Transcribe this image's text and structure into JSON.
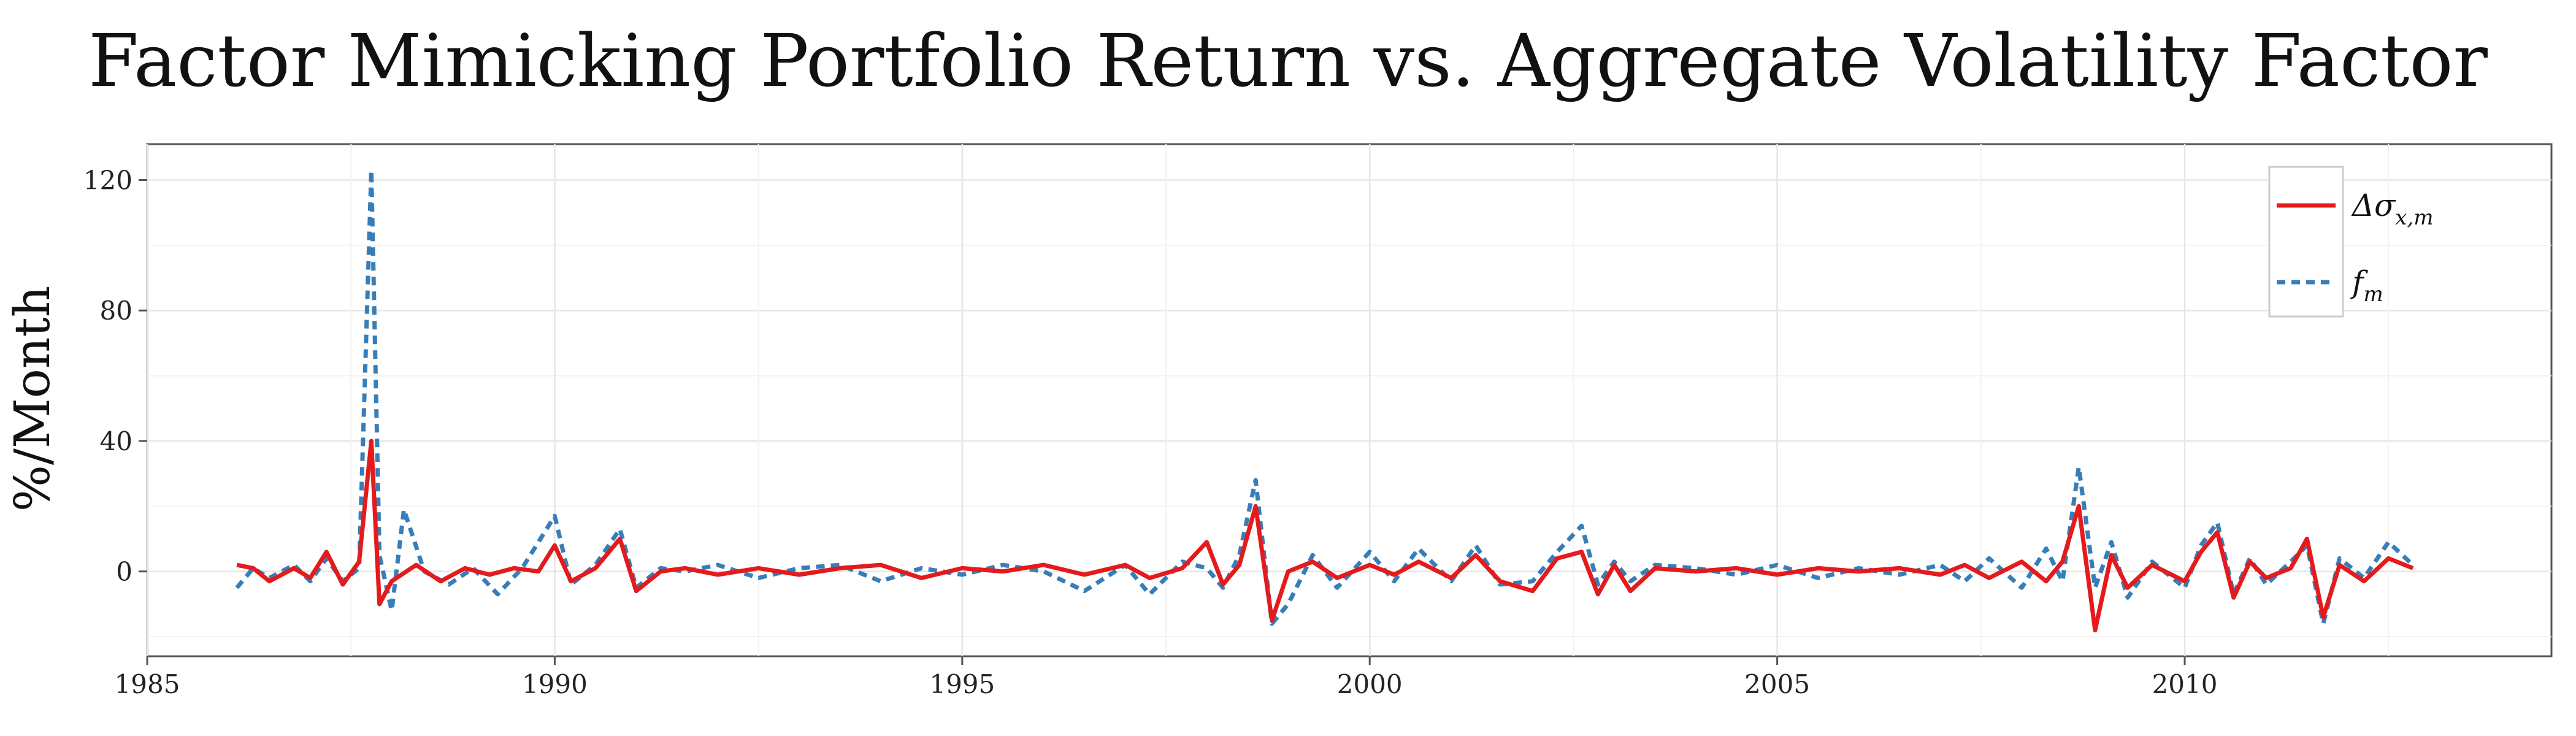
{
  "chart_data": {
    "type": "line",
    "title": "Factor Mimicking Portfolio Return vs. Aggregate Volatility Factor",
    "xlabel": "",
    "ylabel": "%/Month",
    "xlim": [
      1985,
      2014.5
    ],
    "ylim": [
      -26,
      131
    ],
    "x_ticks": [
      "1985",
      "1990",
      "1995",
      "2000",
      "2005",
      "2010"
    ],
    "y_ticks": [
      "0",
      "40",
      "80",
      "120"
    ],
    "grid": true,
    "legend": "top-right",
    "series": [
      {
        "name": "Δσx,m",
        "color": "#e41a1c",
        "style": "solid",
        "points": [
          [
            1986.1,
            2
          ],
          [
            1986.3,
            1
          ],
          [
            1986.5,
            -3
          ],
          [
            1986.8,
            1
          ],
          [
            1987.0,
            -2
          ],
          [
            1987.2,
            6
          ],
          [
            1987.4,
            -4
          ],
          [
            1987.6,
            3
          ],
          [
            1987.75,
            40
          ],
          [
            1987.85,
            -10
          ],
          [
            1988.0,
            -3
          ],
          [
            1988.3,
            2
          ],
          [
            1988.6,
            -3
          ],
          [
            1988.9,
            1
          ],
          [
            1989.2,
            -1
          ],
          [
            1989.5,
            1
          ],
          [
            1989.8,
            0
          ],
          [
            1990.0,
            8
          ],
          [
            1990.2,
            -3
          ],
          [
            1990.5,
            1
          ],
          [
            1990.8,
            10
          ],
          [
            1991.0,
            -6
          ],
          [
            1991.3,
            0
          ],
          [
            1991.6,
            1
          ],
          [
            1992.0,
            -1
          ],
          [
            1992.5,
            1
          ],
          [
            1993.0,
            -1
          ],
          [
            1993.5,
            1
          ],
          [
            1994.0,
            2
          ],
          [
            1994.5,
            -2
          ],
          [
            1995.0,
            1
          ],
          [
            1995.5,
            0
          ],
          [
            1996.0,
            2
          ],
          [
            1996.5,
            -1
          ],
          [
            1997.0,
            2
          ],
          [
            1997.3,
            -2
          ],
          [
            1997.7,
            1
          ],
          [
            1998.0,
            9
          ],
          [
            1998.2,
            -4
          ],
          [
            1998.4,
            2
          ],
          [
            1998.6,
            20
          ],
          [
            1998.8,
            -15
          ],
          [
            1999.0,
            0
          ],
          [
            1999.3,
            3
          ],
          [
            1999.6,
            -2
          ],
          [
            2000.0,
            2
          ],
          [
            2000.3,
            -1
          ],
          [
            2000.6,
            3
          ],
          [
            2001.0,
            -2
          ],
          [
            2001.3,
            5
          ],
          [
            2001.6,
            -3
          ],
          [
            2002.0,
            -6
          ],
          [
            2002.3,
            4
          ],
          [
            2002.6,
            6
          ],
          [
            2002.8,
            -7
          ],
          [
            2003.0,
            2
          ],
          [
            2003.2,
            -6
          ],
          [
            2003.5,
            1
          ],
          [
            2004.0,
            0
          ],
          [
            2004.5,
            1
          ],
          [
            2005.0,
            -1
          ],
          [
            2005.5,
            1
          ],
          [
            2006.0,
            0
          ],
          [
            2006.5,
            1
          ],
          [
            2007.0,
            -1
          ],
          [
            2007.3,
            2
          ],
          [
            2007.6,
            -2
          ],
          [
            2008.0,
            3
          ],
          [
            2008.3,
            -3
          ],
          [
            2008.5,
            3
          ],
          [
            2008.7,
            20
          ],
          [
            2008.9,
            -18
          ],
          [
            2009.1,
            5
          ],
          [
            2009.3,
            -5
          ],
          [
            2009.6,
            2
          ],
          [
            2010.0,
            -3
          ],
          [
            2010.2,
            6
          ],
          [
            2010.4,
            12
          ],
          [
            2010.6,
            -8
          ],
          [
            2010.8,
            3
          ],
          [
            2011.0,
            -2
          ],
          [
            2011.3,
            1
          ],
          [
            2011.5,
            10
          ],
          [
            2011.7,
            -14
          ],
          [
            2011.9,
            2
          ],
          [
            2012.2,
            -3
          ],
          [
            2012.5,
            4
          ],
          [
            2012.8,
            1
          ]
        ]
      },
      {
        "name": "fm",
        "color": "#377eb8",
        "style": "dashed",
        "points": [
          [
            1986.1,
            -5
          ],
          [
            1986.3,
            1
          ],
          [
            1986.5,
            -2
          ],
          [
            1986.8,
            2
          ],
          [
            1987.0,
            -3
          ],
          [
            1987.2,
            4
          ],
          [
            1987.4,
            -3
          ],
          [
            1987.6,
            1
          ],
          [
            1987.75,
            123
          ],
          [
            1987.85,
            5
          ],
          [
            1988.0,
            -12
          ],
          [
            1988.15,
            19
          ],
          [
            1988.4,
            0
          ],
          [
            1988.7,
            -4
          ],
          [
            1989.0,
            1
          ],
          [
            1989.3,
            -7
          ],
          [
            1989.6,
            1
          ],
          [
            1990.0,
            17
          ],
          [
            1990.2,
            -4
          ],
          [
            1990.5,
            2
          ],
          [
            1990.8,
            13
          ],
          [
            1991.0,
            -5
          ],
          [
            1991.3,
            1
          ],
          [
            1991.6,
            0
          ],
          [
            1992.0,
            2
          ],
          [
            1992.5,
            -2
          ],
          [
            1993.0,
            1
          ],
          [
            1993.5,
            2
          ],
          [
            1994.0,
            -3
          ],
          [
            1994.5,
            1
          ],
          [
            1995.0,
            -1
          ],
          [
            1995.5,
            2
          ],
          [
            1996.0,
            0
          ],
          [
            1996.5,
            -6
          ],
          [
            1997.0,
            2
          ],
          [
            1997.3,
            -7
          ],
          [
            1997.7,
            3
          ],
          [
            1998.0,
            1
          ],
          [
            1998.2,
            -5
          ],
          [
            1998.4,
            5
          ],
          [
            1998.6,
            28
          ],
          [
            1998.8,
            -16
          ],
          [
            1999.0,
            -10
          ],
          [
            1999.3,
            5
          ],
          [
            1999.6,
            -5
          ],
          [
            2000.0,
            6
          ],
          [
            2000.3,
            -3
          ],
          [
            2000.6,
            7
          ],
          [
            2001.0,
            -3
          ],
          [
            2001.3,
            8
          ],
          [
            2001.6,
            -4
          ],
          [
            2002.0,
            -3
          ],
          [
            2002.3,
            6
          ],
          [
            2002.6,
            14
          ],
          [
            2002.8,
            -4
          ],
          [
            2003.0,
            3
          ],
          [
            2003.2,
            -3
          ],
          [
            2003.5,
            2
          ],
          [
            2004.0,
            1
          ],
          [
            2004.5,
            -1
          ],
          [
            2005.0,
            2
          ],
          [
            2005.5,
            -2
          ],
          [
            2006.0,
            1
          ],
          [
            2006.5,
            -1
          ],
          [
            2007.0,
            2
          ],
          [
            2007.3,
            -3
          ],
          [
            2007.6,
            4
          ],
          [
            2008.0,
            -5
          ],
          [
            2008.3,
            7
          ],
          [
            2008.5,
            -3
          ],
          [
            2008.7,
            32
          ],
          [
            2008.9,
            -5
          ],
          [
            2009.1,
            9
          ],
          [
            2009.3,
            -8
          ],
          [
            2009.6,
            3
          ],
          [
            2010.0,
            -5
          ],
          [
            2010.2,
            8
          ],
          [
            2010.4,
            15
          ],
          [
            2010.6,
            -7
          ],
          [
            2010.8,
            4
          ],
          [
            2011.0,
            -4
          ],
          [
            2011.3,
            3
          ],
          [
            2011.5,
            8
          ],
          [
            2011.7,
            -16
          ],
          [
            2011.9,
            4
          ],
          [
            2012.2,
            -2
          ],
          [
            2012.5,
            9
          ],
          [
            2012.8,
            2
          ]
        ]
      }
    ]
  }
}
